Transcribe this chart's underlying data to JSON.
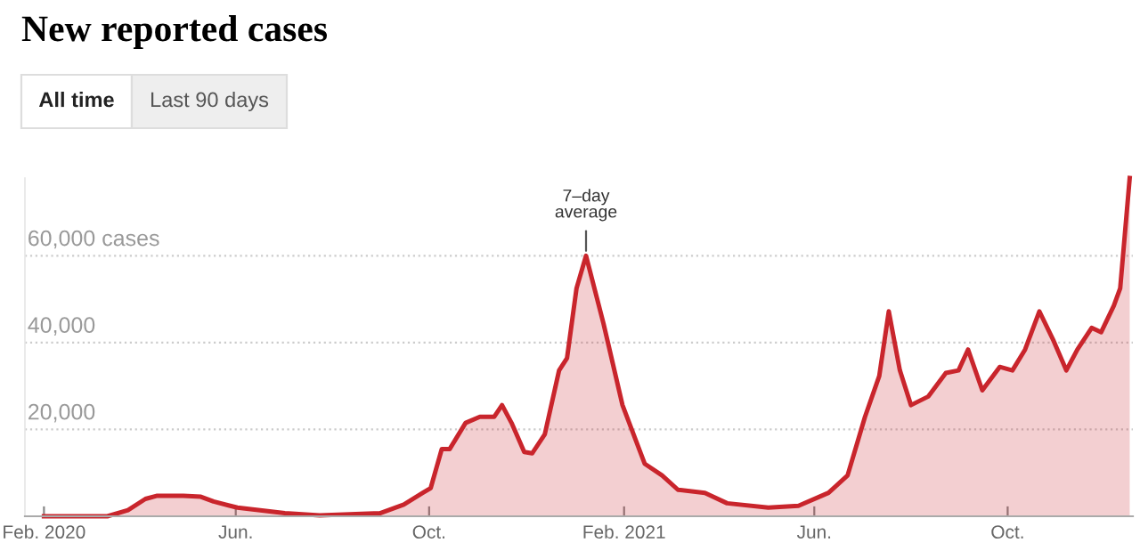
{
  "chart_data": {
    "type": "area",
    "title": "New reported cases",
    "annotations": [
      "All time",
      "Last 90 days",
      {
        "text": "7–day\naverage",
        "x": "2021-01-08",
        "y": 60000
      }
    ],
    "x": [
      "2020-02-01",
      "2020-03-12",
      "2020-03-25",
      "2020-04-05",
      "2020-04-12",
      "2020-04-29",
      "2020-05-10",
      "2020-05-18",
      "2020-06-02",
      "2020-07-02",
      "2020-07-24",
      "2020-08-31",
      "2020-09-15",
      "2020-09-27",
      "2020-10-02",
      "2020-10-09",
      "2020-10-14",
      "2020-10-24",
      "2020-11-02",
      "2020-11-11",
      "2020-11-16",
      "2020-11-22",
      "2020-11-30",
      "2020-12-05",
      "2020-12-13",
      "2020-12-22",
      "2020-12-27",
      "2021-01-02",
      "2021-01-08",
      "2021-01-19",
      "2021-01-31",
      "2021-02-14",
      "2021-02-25",
      "2021-03-07",
      "2021-03-24",
      "2021-04-07",
      "2021-05-03",
      "2021-05-22",
      "2021-06-10",
      "2021-06-22",
      "2021-07-03",
      "2021-07-12",
      "2021-07-18",
      "2021-07-25",
      "2021-08-01",
      "2021-08-12",
      "2021-08-23",
      "2021-08-31",
      "2021-09-06",
      "2021-09-15",
      "2021-09-26",
      "2021-10-04",
      "2021-10-12",
      "2021-10-21",
      "2021-10-30",
      "2021-11-07",
      "2021-11-14",
      "2021-11-23",
      "2021-11-29",
      "2021-12-07",
      "2021-12-11",
      "2021-12-17"
    ],
    "series": [
      {
        "color": "#c9252c",
        "values": [
          0,
          0,
          1400,
          4000,
          4700,
          4700,
          4500,
          3400,
          2000,
          700,
          200,
          700,
          2700,
          5400,
          6500,
          15500,
          15500,
          21500,
          22900,
          22900,
          25600,
          21500,
          14800,
          14500,
          18900,
          33600,
          36400,
          52500,
          60000,
          44400,
          25600,
          12100,
          9400,
          6100,
          5400,
          3000,
          2000,
          2400,
          5400,
          9400,
          22900,
          32300,
          47200,
          33600,
          25600,
          27600,
          33000,
          33600,
          38400,
          29000,
          34400,
          33600,
          38400,
          47200,
          40400,
          33600,
          38400,
          43400,
          42400,
          48500,
          52500,
          77900
        ]
      }
    ],
    "xlim": [
      "2020-01-20",
      "2021-12-19"
    ],
    "ylim": [
      0,
      77900
    ],
    "xticks": [
      {
        "value": "2020-02-01",
        "label": "Feb. 2020"
      },
      {
        "value": "2020-06-01",
        "label": "Jun."
      },
      {
        "value": "2020-10-01",
        "label": "Oct."
      },
      {
        "value": "2021-02-01",
        "label": "Feb. 2021"
      },
      {
        "value": "2021-06-01",
        "label": "Jun."
      },
      {
        "value": "2021-10-01",
        "label": "Oct."
      }
    ],
    "yticks": [
      {
        "value": 20000,
        "label": "20,000"
      },
      {
        "value": 40000,
        "label": "40,000"
      },
      {
        "value": 60000,
        "label": "60,000 cases"
      }
    ],
    "grid": "y",
    "line_style": "solid",
    "marker": "none"
  }
}
